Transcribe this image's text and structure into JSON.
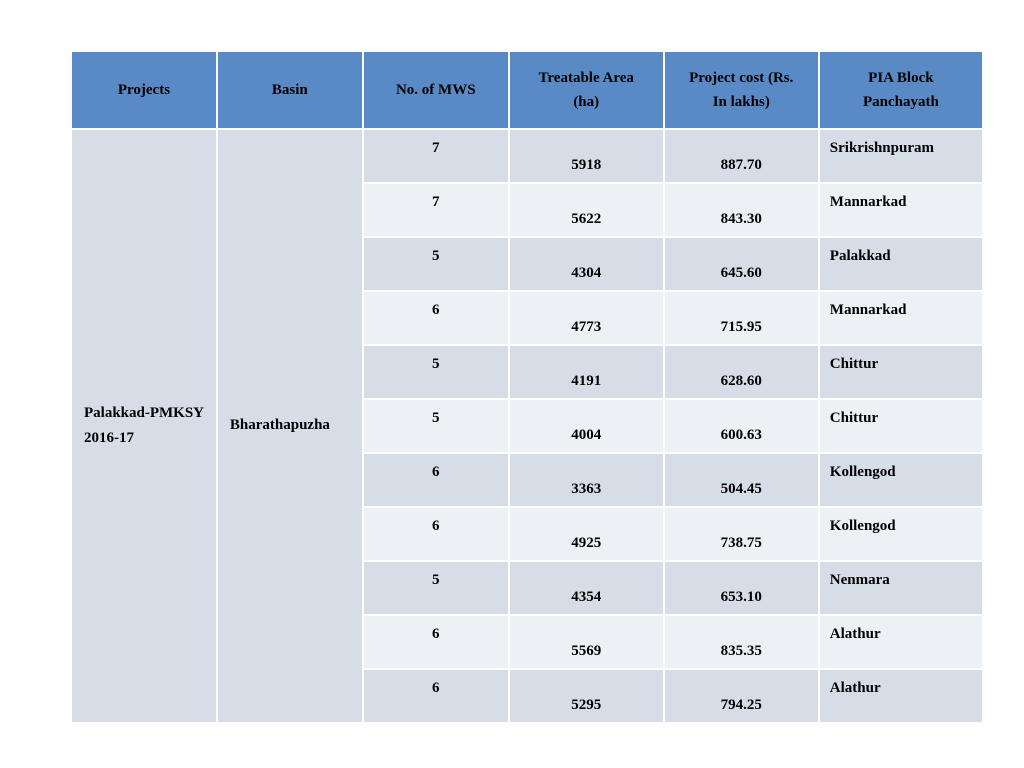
{
  "table": {
    "header_bg": "#5a8ac6",
    "row_odd_bg": "#d6dde6",
    "row_even_bg": "#edf0f5",
    "merged_bg": "#d6dde6",
    "border_color": "#ffffff",
    "text_color": "#000000",
    "font_family": "Times New Roman",
    "header_fontsize": 15,
    "body_fontsize": 15,
    "columns": [
      {
        "label": "Projects",
        "width_pct": 16
      },
      {
        "label": "Basin",
        "width_pct": 16
      },
      {
        "label": "No. of MWS",
        "width_pct": 16
      },
      {
        "label": "Treatable Area (ha)",
        "width_pct": 17
      },
      {
        "label": "Project cost (Rs. In lakhs)",
        "width_pct": 17
      },
      {
        "label": "PIA  Block Panchayath",
        "width_pct": 18
      }
    ],
    "project": "Palakkad-PMKSY 2016-17",
    "basin": "Bharathapuzha",
    "rows": [
      {
        "mws": "7",
        "area": "5918",
        "cost": "887.70",
        "pia": "Srikrishnpuram"
      },
      {
        "mws": "7",
        "area": "5622",
        "cost": "843.30",
        "pia": "Mannarkad"
      },
      {
        "mws": "5",
        "area": "4304",
        "cost": "645.60",
        "pia": "Palakkad"
      },
      {
        "mws": "6",
        "area": "4773",
        "cost": "715.95",
        "pia": "Mannarkad"
      },
      {
        "mws": "5",
        "area": "4191",
        "cost": "628.60",
        "pia": "Chittur"
      },
      {
        "mws": "5",
        "area": "4004",
        "cost": "600.63",
        "pia": "Chittur"
      },
      {
        "mws": "6",
        "area": "3363",
        "cost": "504.45",
        "pia": "Kollengod"
      },
      {
        "mws": "6",
        "area": "4925",
        "cost": "738.75",
        "pia": "Kollengod"
      },
      {
        "mws": "5",
        "area": "4354",
        "cost": "653.10",
        "pia": "Nenmara"
      },
      {
        "mws": "6",
        "area": "5569",
        "cost": "835.35",
        "pia": "Alathur"
      },
      {
        "mws": "6",
        "area": "5295",
        "cost": "794.25",
        "pia": "Alathur"
      }
    ]
  }
}
